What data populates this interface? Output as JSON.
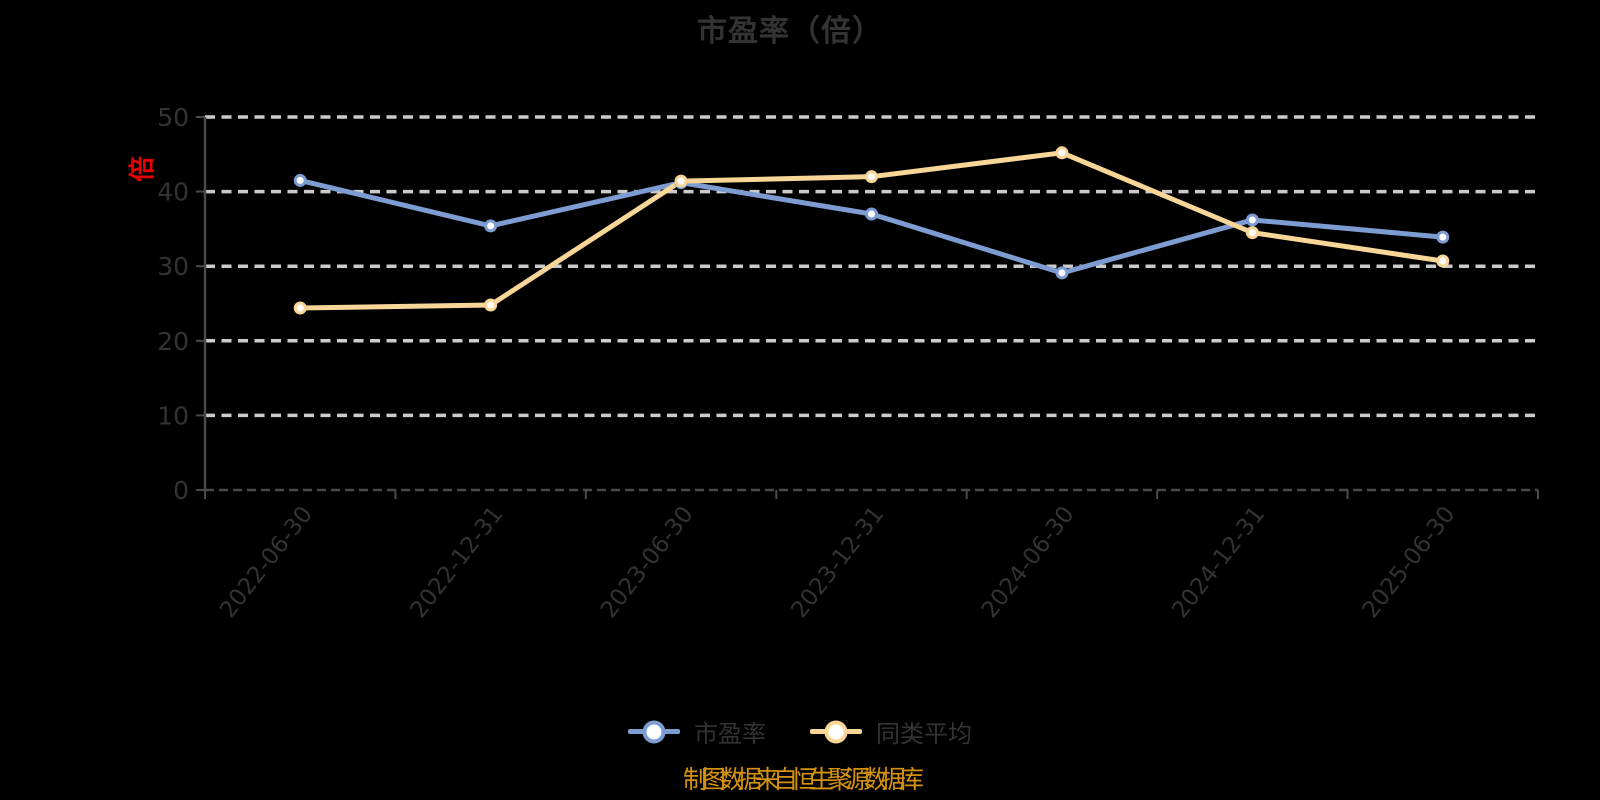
{
  "title": "市盈率（倍）",
  "y_axis_unit": "倍",
  "source_note": "制图数据来自恒生聚源数据库",
  "colors": {
    "background": "#000000",
    "text": "#333333",
    "grid": "#cbcbcb",
    "axis": "#4a4a4a",
    "unit_label": "#e60000",
    "source_note": "#d3920e",
    "pe_series": "#7d9cd2",
    "avg_series": "#f8d698"
  },
  "chart_data": {
    "type": "line",
    "categories": [
      "2022-06-30",
      "2022-12-31",
      "2023-06-30",
      "2023-12-31",
      "2024-06-30",
      "2024-12-31",
      "2025-06-30"
    ],
    "series": [
      {
        "name": "市盈率",
        "color": "#7d9cd2",
        "values": [
          41.5,
          35.4,
          41.2,
          37.0,
          29.1,
          36.2,
          33.9
        ]
      },
      {
        "name": "同类平均",
        "color": "#f8d698",
        "values": [
          24.4,
          24.8,
          41.4,
          42.0,
          45.2,
          34.5,
          30.7
        ]
      }
    ],
    "title": "市盈率（倍）",
    "xlabel": "",
    "ylabel": "倍",
    "ylim": [
      0,
      50
    ],
    "yticks": [
      0,
      10,
      20,
      30,
      40,
      50
    ],
    "grid": "dashed-horizontal",
    "legend_position": "bottom",
    "marker": "circle-white-fill"
  },
  "legend": {
    "items": [
      {
        "label": "市盈率"
      },
      {
        "label": "同类平均"
      }
    ]
  }
}
